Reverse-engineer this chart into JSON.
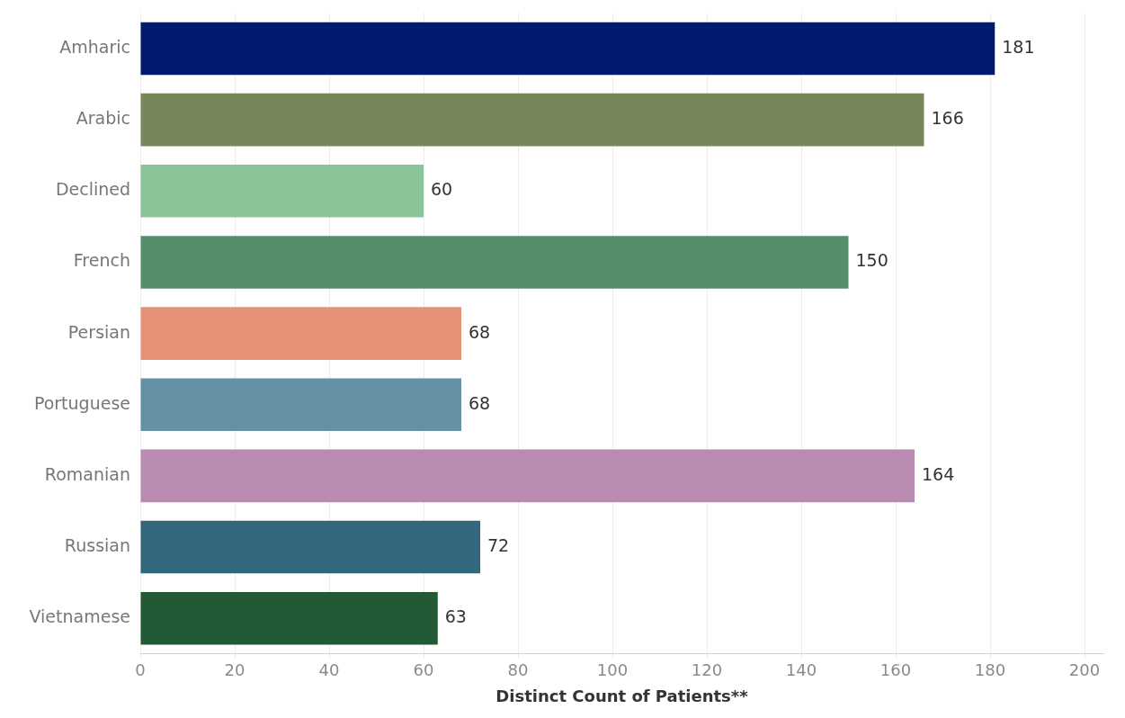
{
  "chart_data": {
    "type": "bar",
    "orientation": "horizontal",
    "xlabel": "Distinct Count of Patients**",
    "categories": [
      "Amharic",
      "Arabic",
      "Declined",
      "French",
      "Persian",
      "Portuguese",
      "Romanian",
      "Russian",
      "Vietnamese"
    ],
    "values": [
      181,
      166,
      60,
      150,
      68,
      68,
      164,
      72,
      63
    ],
    "colors": [
      "#001a6e",
      "#77875a",
      "#8cc49a",
      "#568e6a",
      "#e69176",
      "#6591a6",
      "#b98bb0",
      "#33677e",
      "#235a36"
    ],
    "xlim": [
      0,
      204
    ],
    "xticks": [
      0,
      20,
      40,
      60,
      80,
      100,
      120,
      140,
      160,
      180,
      200
    ],
    "grid": "x",
    "data_labels": true,
    "legend": false
  }
}
